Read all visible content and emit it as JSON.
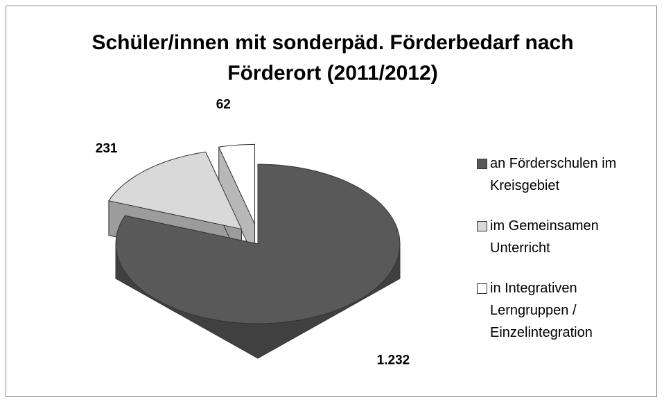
{
  "chart_data": {
    "type": "pie",
    "title": "Schüler/innen mit sonderpäd. Förderbedarf nach Förderort (2011/2012)",
    "categories": [
      "an Förderschulen im Kreisgebiet",
      "im Gemeinsamen Unterricht",
      "in Integrativen Lerngruppen / Einzelintegration"
    ],
    "values": [
      1232,
      231,
      62
    ],
    "value_labels": [
      "1.232",
      "231",
      "62"
    ],
    "colors": [
      "#595959",
      "#d9d9d9",
      "#ffffff"
    ],
    "legend": "right"
  }
}
